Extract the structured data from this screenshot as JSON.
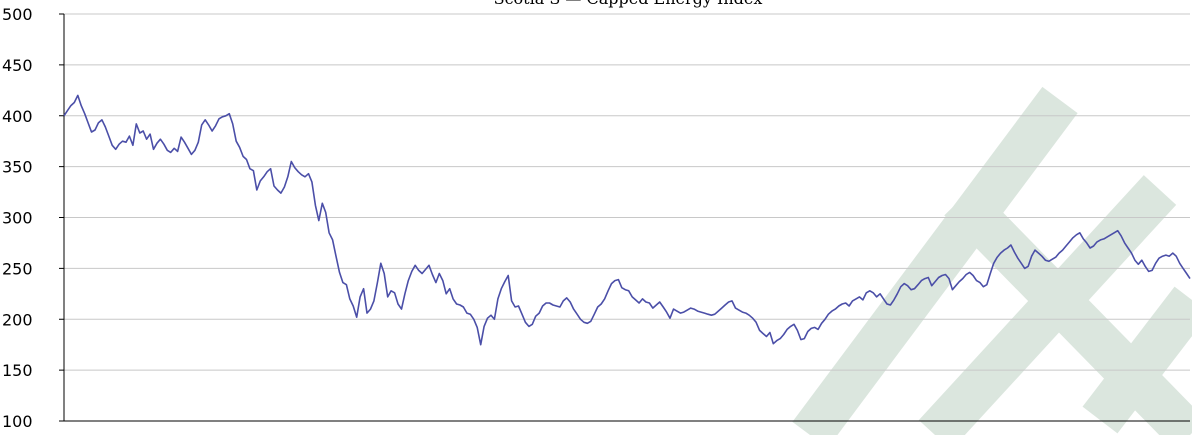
{
  "chart_data": {
    "type": "line",
    "title": "Scotia S — Capped Energy Index",
    "xlabel": "",
    "ylabel": "",
    "ylim": [
      100,
      500
    ],
    "yticks": [
      100,
      150,
      200,
      250,
      300,
      350,
      400,
      450,
      500
    ],
    "ytick_labels": [
      "100",
      "150",
      "200",
      "250",
      "300",
      "350",
      "400",
      "450",
      "500"
    ],
    "grid": true,
    "legend": "none",
    "colors": {
      "line": "#4b4fa8",
      "grid": "#c8c8c8",
      "axis": "#000000",
      "watermark": "#dbe6de"
    },
    "watermark": "SAMPLE",
    "series": [
      {
        "values": [
          400,
          405,
          410,
          413,
          420,
          410,
          402,
          393,
          384,
          386,
          393,
          396,
          389,
          380,
          371,
          367,
          372,
          375,
          374,
          380,
          371,
          392,
          383,
          385,
          377,
          382,
          367,
          373,
          377,
          372,
          366,
          364,
          368,
          365,
          379,
          374,
          368,
          362,
          366,
          374,
          391,
          396,
          391,
          385,
          390,
          397,
          399,
          400,
          402,
          392,
          375,
          369,
          360,
          357,
          348,
          346,
          327,
          336,
          340,
          345,
          348,
          331,
          327,
          324,
          330,
          340,
          355,
          349,
          345,
          342,
          340,
          343,
          335,
          312,
          297,
          314,
          305,
          285,
          278,
          262,
          246,
          236,
          234,
          220,
          213,
          202,
          222,
          230,
          206,
          210,
          218,
          236,
          255,
          245,
          222,
          228,
          226,
          215,
          210,
          225,
          238,
          247,
          253,
          248,
          245,
          249,
          253,
          244,
          236,
          245,
          238,
          225,
          230,
          220,
          215,
          214,
          212,
          206,
          205,
          200,
          192,
          175,
          193,
          201,
          204,
          200,
          220,
          230,
          237,
          243,
          218,
          212,
          213,
          205,
          197,
          193,
          195,
          203,
          206,
          213,
          216,
          216,
          214,
          213,
          212,
          218,
          221,
          217,
          210,
          205,
          200,
          197,
          196,
          198,
          205,
          212,
          215,
          220,
          228,
          235,
          238,
          239,
          231,
          229,
          228,
          222,
          219,
          216,
          220,
          217,
          216,
          211,
          214,
          217,
          212,
          207,
          201,
          210,
          208,
          206,
          207,
          209,
          211,
          210,
          208,
          207,
          206,
          205,
          204,
          205,
          208,
          211,
          214,
          217,
          218,
          211,
          209,
          207,
          206,
          204,
          201,
          197,
          189,
          186,
          183,
          187,
          176,
          179,
          181,
          185,
          190,
          193,
          195,
          189,
          180,
          181,
          188,
          191,
          192,
          190,
          196,
          200,
          205,
          208,
          210,
          213,
          215,
          216,
          213,
          218,
          220,
          222,
          219,
          226,
          228,
          226,
          222,
          225,
          220,
          215,
          214,
          219,
          225,
          232,
          235,
          233,
          229,
          230,
          234,
          238,
          240,
          241,
          233,
          237,
          241,
          243,
          244,
          240,
          229,
          233,
          237,
          240,
          244,
          246,
          243,
          238,
          236,
          232,
          234,
          245,
          255,
          261,
          265,
          268,
          270,
          273,
          266,
          260,
          255,
          250,
          252,
          262,
          268,
          265,
          262,
          258,
          257,
          259,
          261,
          265,
          268,
          272,
          276,
          280,
          283,
          285,
          279,
          275,
          270,
          272,
          276,
          278,
          279,
          281,
          283,
          285,
          287,
          282,
          275,
          270,
          265,
          258,
          254,
          258,
          252,
          247,
          248,
          255,
          260,
          262,
          263,
          262,
          265,
          262,
          255,
          250,
          245,
          240
        ]
      }
    ]
  }
}
